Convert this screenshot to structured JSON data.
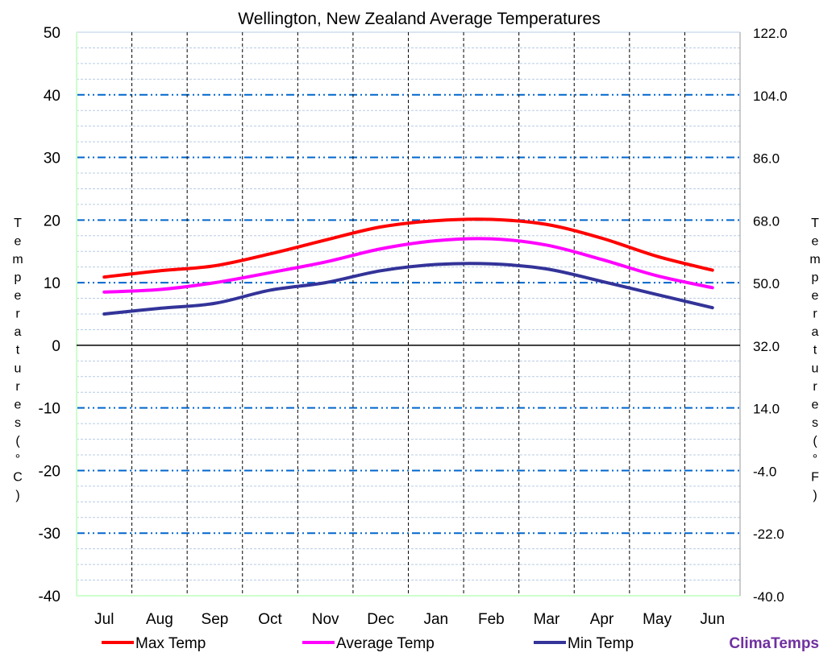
{
  "chart_data": {
    "type": "line",
    "title": "Wellington, New Zealand Average  Temperatures",
    "ylabel_left": "Temperatures (°C)",
    "ylabel_right": "Temperatures (°F)",
    "categories": [
      "Jul",
      "Aug",
      "Sep",
      "Oct",
      "Nov",
      "Dec",
      "Jan",
      "Feb",
      "Mar",
      "Apr",
      "May",
      "Jun"
    ],
    "ylim": [
      -40,
      50
    ],
    "yticks_left": [
      "50",
      "40",
      "30",
      "20",
      "10",
      "0",
      "-10",
      "-20",
      "-30",
      "-40"
    ],
    "yticks_right": [
      "122.0",
      "104.0",
      "86.0",
      "68.0",
      "50.0",
      "32.0",
      "14.0",
      "-4.0",
      "-22.0",
      "-40.0"
    ],
    "grid": true,
    "legend_placement": "bottom",
    "series": [
      {
        "name": "Max Temp",
        "color": "#ff0000",
        "values": [
          10.9,
          11.9,
          12.7,
          14.6,
          16.8,
          18.9,
          19.9,
          20.1,
          19.3,
          17.1,
          14.2,
          12.0
        ]
      },
      {
        "name": "Average Temp",
        "color": "#ff00ff",
        "values": [
          8.5,
          8.9,
          10.0,
          11.6,
          13.3,
          15.4,
          16.7,
          17.0,
          16.0,
          13.7,
          11.1,
          9.2
        ]
      },
      {
        "name": "Min Temp",
        "color": "#333399",
        "values": [
          5.0,
          5.9,
          6.7,
          8.8,
          10.0,
          11.9,
          12.9,
          13.0,
          12.2,
          10.2,
          8.1,
          6.0
        ]
      }
    ]
  },
  "branding": {
    "text": "ClimaTemps",
    "color": "#7030a0"
  }
}
